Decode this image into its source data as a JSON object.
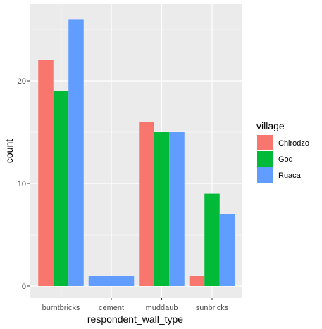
{
  "chart_data": {
    "type": "bar",
    "xlabel": "respondent_wall_type",
    "ylabel": "count",
    "categories": [
      "burntbricks",
      "cement",
      "muddaub",
      "sunbricks"
    ],
    "ylim": [
      0,
      27.3
    ],
    "yticks": [
      0,
      10,
      20
    ],
    "grid": true,
    "legend": {
      "title": "village",
      "position": "right"
    },
    "series": [
      {
        "name": "Chirodzo",
        "color": "#F8766D",
        "values": [
          22,
          null,
          16,
          1
        ]
      },
      {
        "name": "God",
        "color": "#00BA38",
        "values": [
          19,
          null,
          15,
          9
        ]
      },
      {
        "name": "Ruaca",
        "color": "#619CFF",
        "values": [
          26,
          1,
          15,
          7
        ]
      }
    ],
    "panel_background": "#EBEBEB",
    "grid_color": "#FFFFFF"
  }
}
